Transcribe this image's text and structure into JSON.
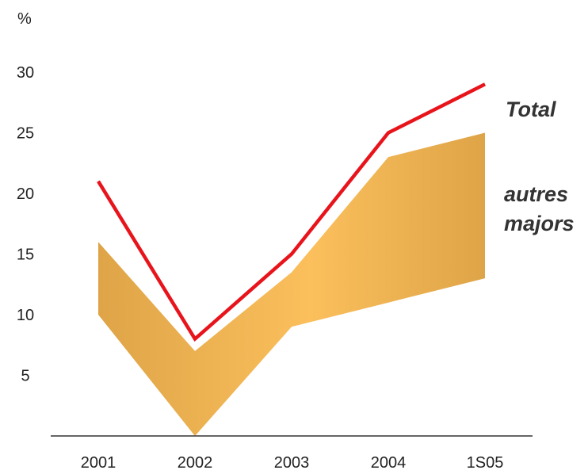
{
  "chart_data": {
    "type": "line",
    "categories": [
      "2001",
      "2002",
      "2003",
      "2004",
      "1S05"
    ],
    "ylabel": "%",
    "ylim": [
      0,
      30
    ],
    "yticks": [
      5,
      10,
      15,
      20,
      25,
      30
    ],
    "grid": false,
    "series": [
      {
        "name": "Total",
        "kind": "line",
        "color": "#e8141c",
        "values": [
          21,
          8,
          15,
          25,
          29
        ]
      },
      {
        "name": "autres majors",
        "kind": "range-area",
        "color": "#e4ab4f",
        "upper": [
          16,
          7,
          13.5,
          23,
          25
        ],
        "lower": [
          10,
          0,
          9,
          11,
          13
        ]
      }
    ]
  }
}
